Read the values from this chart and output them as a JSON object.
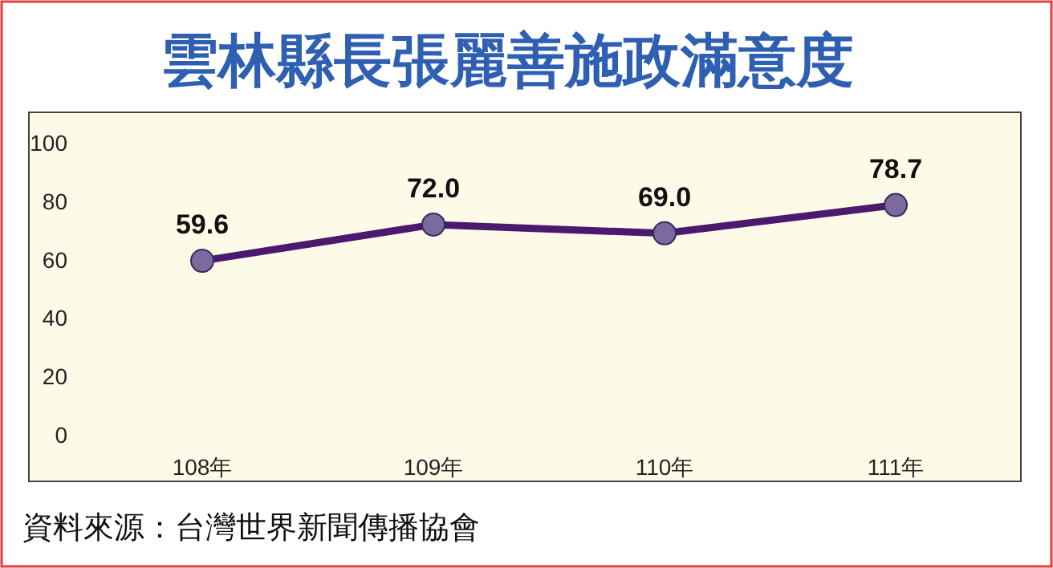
{
  "chart_data": {
    "type": "line",
    "title": "雲林縣長張麗善施政滿意度",
    "categories": [
      "108年",
      "109年",
      "110年",
      "111年"
    ],
    "series": [
      {
        "color": "#4b1a6e",
        "values": [
          59.6,
          72.0,
          69.0,
          78.7
        ],
        "value_labels": [
          "59.6",
          "72.0",
          "69.0",
          "78.7"
        ]
      }
    ],
    "ylim": [
      0,
      100
    ],
    "yticks": [
      0,
      20,
      40,
      60,
      80,
      100
    ],
    "marker": "circle",
    "grid": false,
    "annotations": [
      "資料來源：台灣世界新聞傳播協會"
    ]
  }
}
